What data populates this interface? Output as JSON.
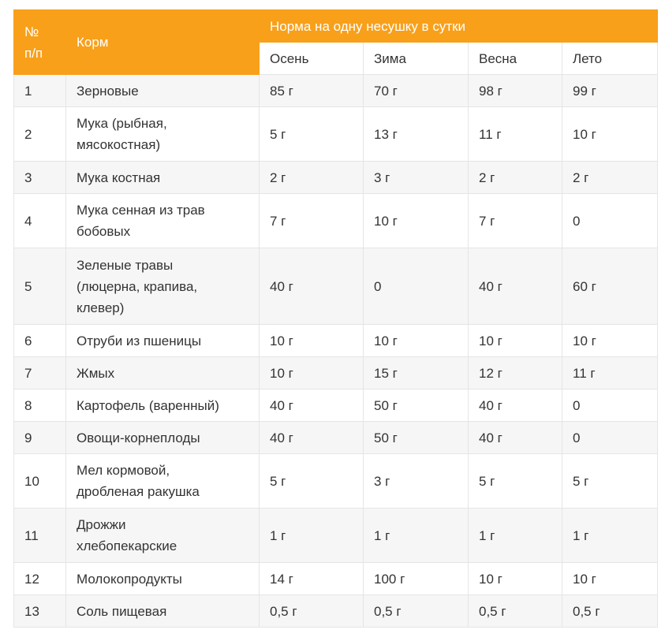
{
  "table": {
    "header": {
      "num": "№ п/п",
      "feed": "Корм",
      "group": "Норма на одну несушку в сутки",
      "seasons": [
        "Осень",
        "Зима",
        "Весна",
        "Лето"
      ]
    },
    "rows": [
      {
        "num": "1",
        "feed": "Зерновые",
        "autumn": "85 г",
        "winter": "70 г",
        "spring": "98 г",
        "summer": "99 г"
      },
      {
        "num": "2",
        "feed": "Мука (рыбная, мясокостная)",
        "autumn": "5 г",
        "winter": "13 г",
        "spring": "11 г",
        "summer": "10 г"
      },
      {
        "num": "3",
        "feed": "Мука костная",
        "autumn": "2 г",
        "winter": "3 г",
        "spring": "2 г",
        "summer": "2 г"
      },
      {
        "num": "4",
        "feed": "Мука сенная из трав бобовых",
        "autumn": "7 г",
        "winter": "10 г",
        "spring": "7 г",
        "summer": "0"
      },
      {
        "num": "5",
        "feed": "Зеленые травы (люцерна, крапива, клевер)",
        "autumn": "40 г",
        "winter": "0",
        "spring": "40 г",
        "summer": "60 г"
      },
      {
        "num": "6",
        "feed": "Отруби из пшеницы",
        "autumn": "10 г",
        "winter": "10 г",
        "spring": "10 г",
        "summer": "10 г"
      },
      {
        "num": "7",
        "feed": "Жмых",
        "autumn": "10 г",
        "winter": "15 г",
        "spring": "12 г",
        "summer": "11 г"
      },
      {
        "num": "8",
        "feed": "Картофель (варенный)",
        "autumn": "40 г",
        "winter": "50 г",
        "spring": "40 г",
        "summer": "0"
      },
      {
        "num": "9",
        "feed": "Овощи-корнеплоды",
        "autumn": "40 г",
        "winter": "50 г",
        "spring": "40 г",
        "summer": "0"
      },
      {
        "num": "10",
        "feed": "Мел кормовой, дробленая ракушка",
        "autumn": "5 г",
        "winter": "3 г",
        "spring": "5 г",
        "summer": "5 г"
      },
      {
        "num": "11",
        "feed": "Дрожжи хлебопекарские",
        "autumn": "1 г",
        "winter": "1 г",
        "spring": "1 г",
        "summer": "1 г"
      },
      {
        "num": "12",
        "feed": "Молокопродукты",
        "autumn": "14 г",
        "winter": "100 г",
        "spring": "10 г",
        "summer": "10 г"
      },
      {
        "num": "13",
        "feed": "Соль пищевая",
        "autumn": "0,5 г",
        "winter": "0,5 г",
        "spring": "0,5 г",
        "summer": "0,5 г"
      }
    ]
  }
}
